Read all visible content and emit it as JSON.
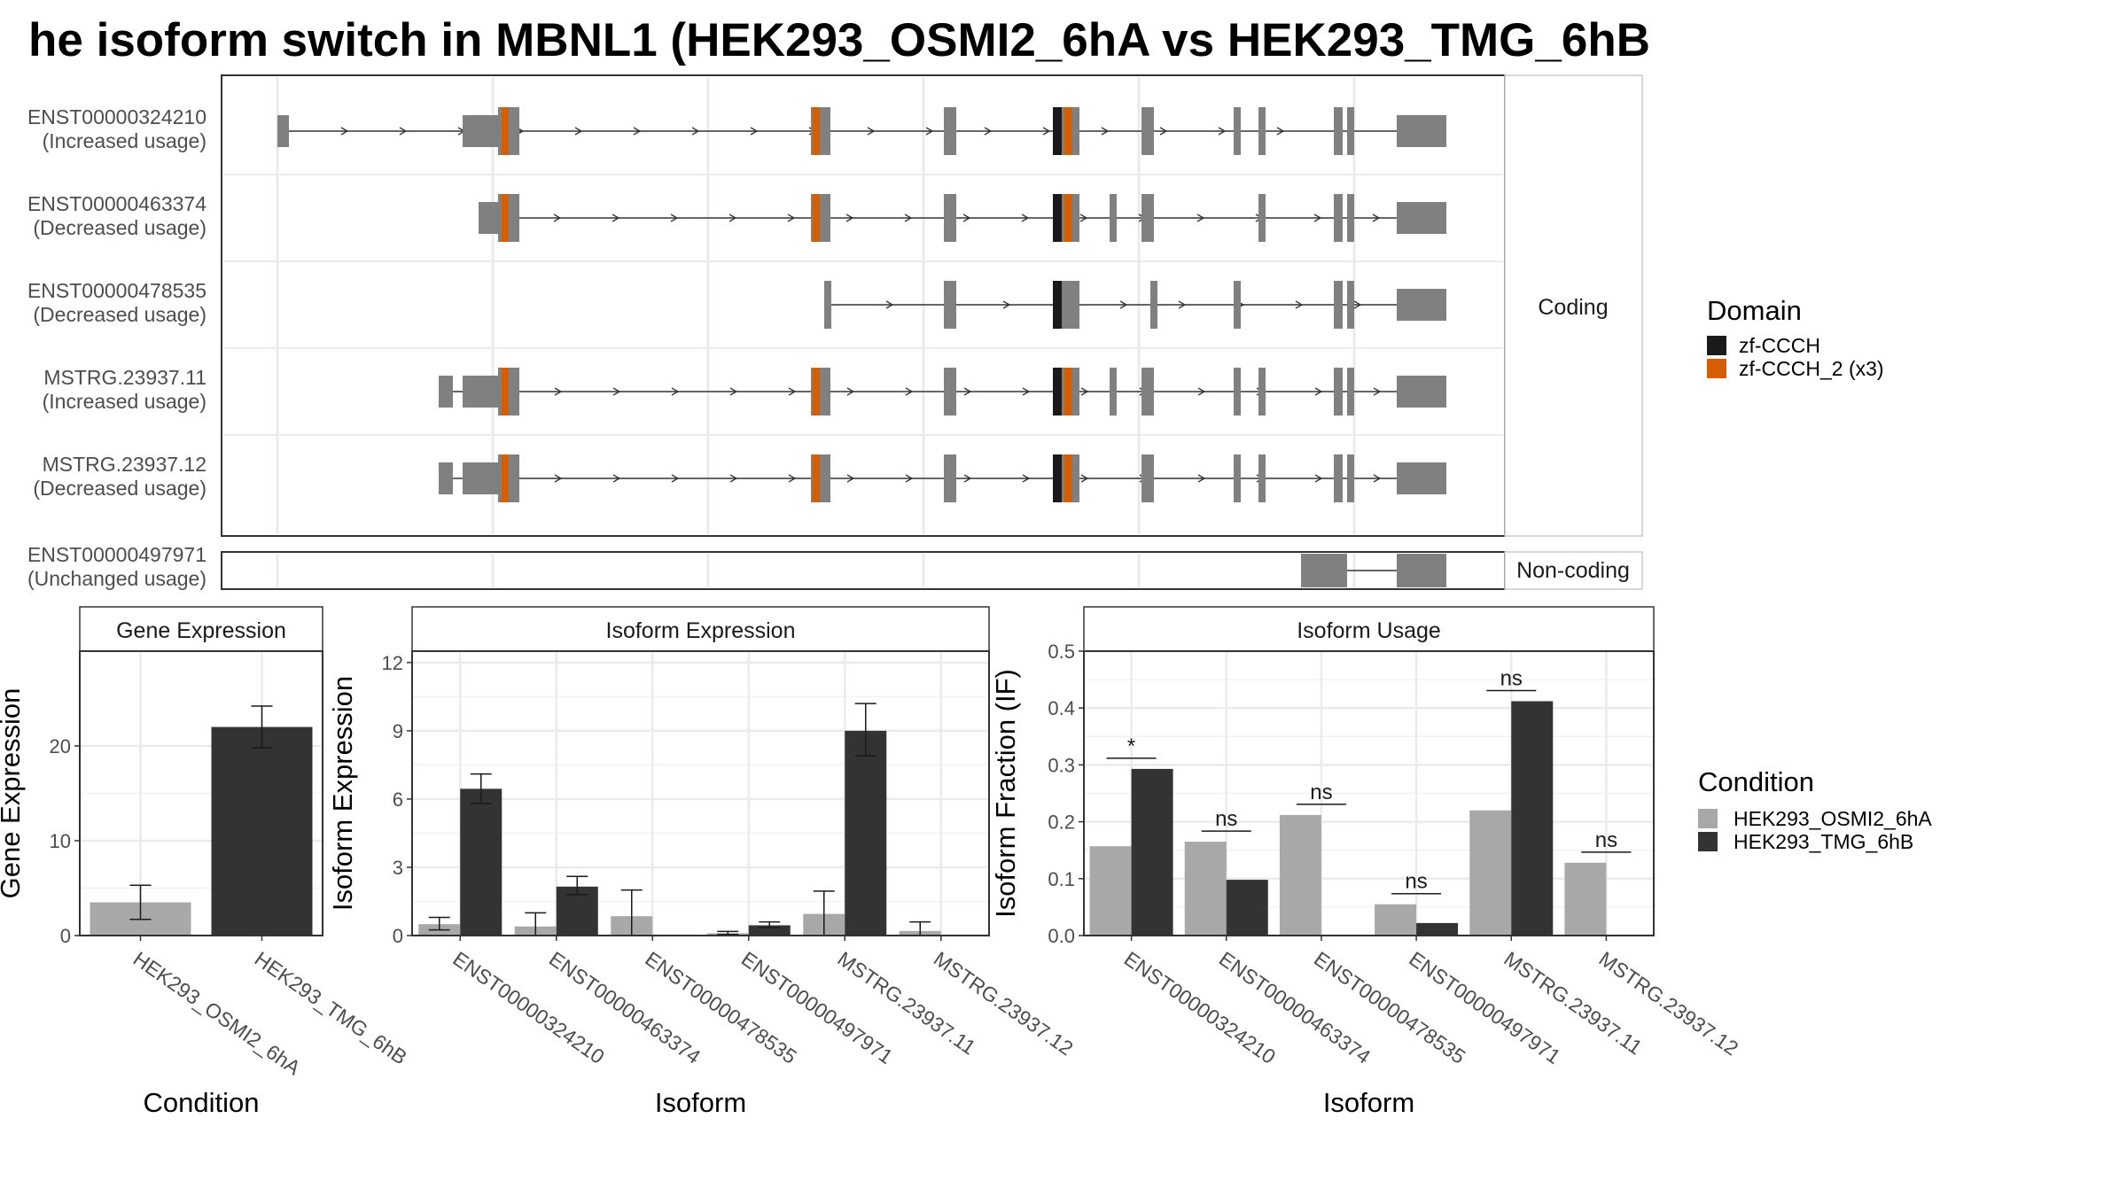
{
  "title": "he isoform switch in MBNL1 (HEK293_OSMI2_6hA vs HEK293_TMG_6hB",
  "colors": {
    "exon": "#808080",
    "zf_ccch": "#1a1a1a",
    "zf_ccch_2": "#d55e00",
    "cond_a": "#a8a8a8",
    "cond_b": "#333333",
    "grid": "#ebebeb",
    "strip": "#ffffff"
  },
  "transcript_panel": {
    "coding_label": "Coding",
    "noncoding_label": "Non-coding",
    "tracks": [
      {
        "id": "ENST00000324210",
        "usage": "(Increased usage)",
        "group": "coding"
      },
      {
        "id": "ENST00000463374",
        "usage": "(Decreased usage)",
        "group": "coding"
      },
      {
        "id": "ENST00000478535",
        "usage": "(Decreased usage)",
        "group": "coding"
      },
      {
        "id": "MSTRG.23937.11",
        "usage": "(Increased usage)",
        "group": "coding"
      },
      {
        "id": "MSTRG.23937.12",
        "usage": "(Decreased usage)",
        "group": "coding"
      },
      {
        "id": "ENST00000497971",
        "usage": "(Unchanged usage)",
        "group": "noncoding"
      }
    ]
  },
  "domain_legend": {
    "title": "Domain",
    "items": [
      {
        "label": "zf-CCCH",
        "color": "#1a1a1a"
      },
      {
        "label": "zf-CCCH_2 (x3)",
        "color": "#d55e00"
      }
    ]
  },
  "condition_legend": {
    "title": "Condition",
    "items": [
      {
        "label": "HEK293_OSMI2_6hA",
        "color": "#a8a8a8"
      },
      {
        "label": "HEK293_TMG_6hB",
        "color": "#333333"
      }
    ]
  },
  "chart_data": [
    {
      "type": "bar",
      "title": "Gene Expression",
      "xlabel": "Condition",
      "ylabel": "Gene Expression",
      "categories": [
        "HEK293_OSMI2_6hA",
        "HEK293_TMG_6hB"
      ],
      "values": [
        3.5,
        22
      ],
      "error": [
        [
          1.7,
          5.3
        ],
        [
          19.8,
          24.2
        ]
      ],
      "colors": [
        "#a8a8a8",
        "#333333"
      ],
      "ylim": [
        0,
        30
      ],
      "yticks": [
        0,
        10,
        20
      ]
    },
    {
      "type": "bar",
      "title": "Isoform Expression",
      "xlabel": "Isoform",
      "ylabel": "Isoform Expression",
      "categories": [
        "ENST00000324210",
        "ENST00000463374",
        "ENST00000478535",
        "ENST00000497971",
        "MSTRG.23937.11",
        "MSTRG.23937.12"
      ],
      "series": [
        {
          "name": "HEK293_OSMI2_6hA",
          "values": [
            0.5,
            0.4,
            0.85,
            0.1,
            0.95,
            0.2
          ],
          "error": [
            [
              0.25,
              0.8
            ],
            [
              0,
              1.0
            ],
            [
              0,
              2.0
            ],
            [
              0.05,
              0.18
            ],
            [
              0,
              1.95
            ],
            [
              0,
              0.6
            ]
          ]
        },
        {
          "name": "HEK293_TMG_6hB",
          "values": [
            6.45,
            2.15,
            0.0,
            0.45,
            9.0,
            0.0
          ],
          "error": [
            [
              5.8,
              7.1
            ],
            [
              1.8,
              2.6
            ],
            [
              0,
              0
            ],
            [
              0.35,
              0.6
            ],
            [
              7.9,
              10.2
            ],
            [
              0,
              0
            ]
          ]
        }
      ],
      "ylim": [
        0,
        12.5
      ],
      "yticks": [
        0,
        3,
        6,
        9,
        12
      ]
    },
    {
      "type": "bar",
      "title": "Isoform Usage",
      "xlabel": "Isoform",
      "ylabel": "Isoform Fraction (IF)",
      "categories": [
        "ENST00000324210",
        "ENST00000463374",
        "ENST00000478535",
        "ENST00000497971",
        "MSTRG.23937.11",
        "MSTRG.23937.12"
      ],
      "series": [
        {
          "name": "HEK293_OSMI2_6hA",
          "values": [
            0.157,
            0.165,
            0.212,
            0.055,
            0.22,
            0.128
          ]
        },
        {
          "name": "HEK293_TMG_6hB",
          "values": [
            0.293,
            0.098,
            0.0,
            0.022,
            0.412,
            0.0
          ]
        }
      ],
      "significance": [
        "*",
        "ns",
        "ns",
        "ns",
        "ns",
        "ns"
      ],
      "ylim": [
        0,
        0.5
      ],
      "yticks": [
        "0.0",
        "0.1",
        "0.2",
        "0.3",
        "0.4",
        "0.5"
      ]
    }
  ]
}
